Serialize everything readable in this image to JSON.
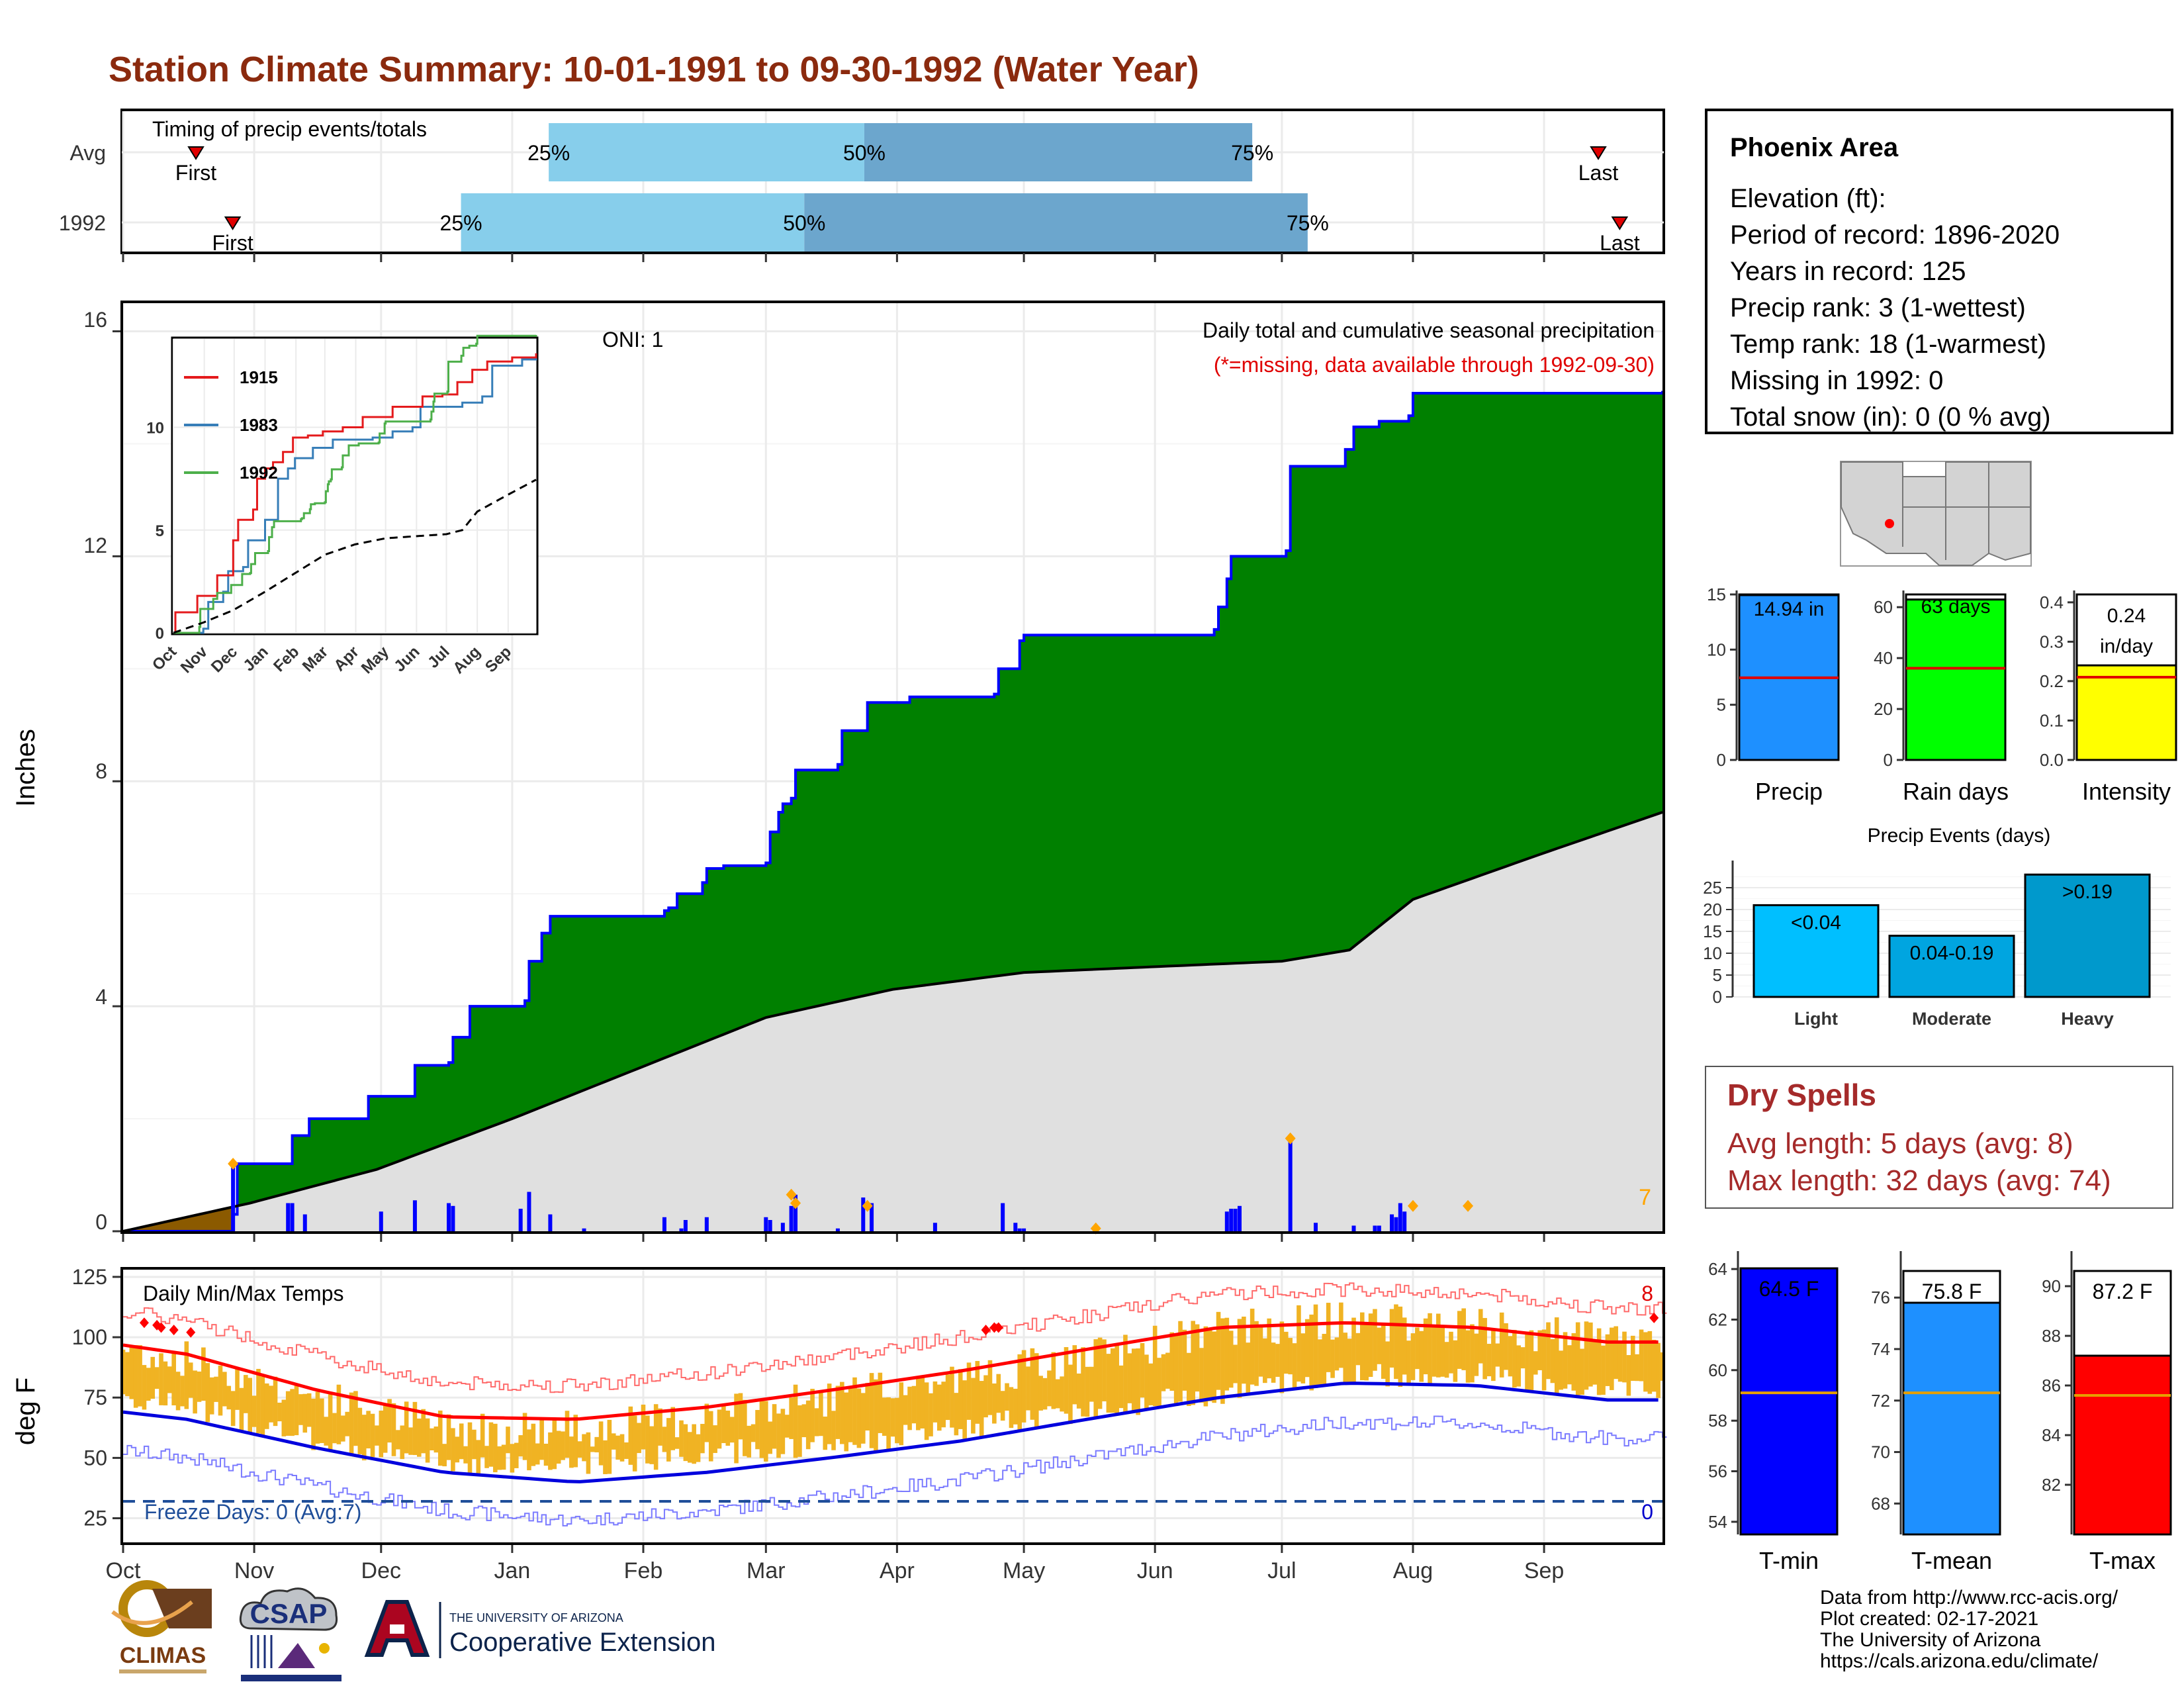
{
  "title": "Station Climate Summary: 10-01-1991 to 09-30-1992 (Water Year)",
  "timing": {
    "heading": "Timing of precip events/totals",
    "rows": [
      {
        "label": "Avg",
        "first": 0.0473,
        "last": 0.9583,
        "q25": 0.2765,
        "q50": 0.4815,
        "q75": 0.7335
      },
      {
        "label": "1992",
        "first": 0.0712,
        "last": 0.9722,
        "q25": 0.2195,
        "q50": 0.4425,
        "q75": 0.7695
      }
    ],
    "first_label": "First",
    "last_label": "Last",
    "q25_label": "25%",
    "q50_label": "50%",
    "q75_label": "75%"
  },
  "precip_panel": {
    "title": "Daily total and cumulative seasonal precipitation",
    "missing_note": "(*=missing, data available through 1992-09-30)",
    "oni_label": "ONI: 1",
    "ylabel": "Inches",
    "yticks": [
      "0",
      "4",
      "8",
      "12",
      "16"
    ],
    "corner_count": "7"
  },
  "temp_panel": {
    "title": "Daily Min/Max Temps",
    "ylabel": "deg F",
    "yticks": [
      "25",
      "50",
      "75",
      "100",
      "125"
    ],
    "freeze_label": "Freeze Days: 0 (Avg:7)",
    "record_high_count": "8",
    "record_low_count": "0"
  },
  "month_labels": [
    "Oct",
    "Nov",
    "Dec",
    "Jan",
    "Feb",
    "Mar",
    "Apr",
    "May",
    "Jun",
    "Jul",
    "Aug",
    "Sep"
  ],
  "inset": {
    "legend": [
      "1915",
      "1983",
      "1992"
    ],
    "yticks": [
      "0",
      "5",
      "10"
    ],
    "xticks": [
      "Oct",
      "Nov",
      "Dec",
      "Jan",
      "Feb",
      "Mar",
      "Apr",
      "May",
      "Jun",
      "Jul",
      "Aug",
      "Sep"
    ]
  },
  "station": {
    "name": "Phoenix Area",
    "lines": [
      "Elevation (ft):",
      "Period of record: 1896-2020",
      "Years in record: 125",
      "Precip rank: 3 (1-wettest)",
      "Temp rank: 18 (1-warmest)",
      "Missing in 1992: 0",
      "Total snow (in): 0 (0 % avg)"
    ]
  },
  "summary_bars": {
    "precip": {
      "label": "Precip",
      "value_label": "14.94 in"
    },
    "rain_days": {
      "label": "Rain days",
      "value_label": "63 days"
    },
    "intensity": {
      "label": "Intensity",
      "value_label": "0.24",
      "unit_label": "in/day"
    },
    "precip_yticks": [
      "0",
      "5",
      "10",
      "15"
    ],
    "rain_yticks": [
      "0",
      "20",
      "40",
      "60"
    ],
    "intensity_yticks": [
      "0.0",
      "0.1",
      "0.2",
      "0.3",
      "0.4"
    ]
  },
  "events": {
    "title": "Precip Events (days)",
    "yticks": [
      "0",
      "5",
      "10",
      "15",
      "20",
      "25"
    ],
    "categories": [
      "Light",
      "Moderate",
      "Heavy"
    ],
    "value_labels": [
      "<0.04",
      "0.04-0.19",
      ">0.19"
    ]
  },
  "dry_spells": {
    "title": "Dry Spells",
    "avg_line": "Avg length: 5 days (avg: 8)",
    "max_line": "Max length: 32 days (avg: 74)"
  },
  "temp_bars": {
    "tmin": {
      "label": "T-min",
      "value_label": "64.5 F",
      "yticks": [
        "54",
        "56",
        "58",
        "60",
        "62",
        "64"
      ]
    },
    "tmean": {
      "label": "T-mean",
      "value_label": "75.8 F",
      "yticks": [
        "68",
        "70",
        "72",
        "74",
        "76"
      ]
    },
    "tmax": {
      "label": "T-max",
      "value_label": "87.2 F",
      "yticks": [
        "82",
        "84",
        "86",
        "88",
        "90"
      ]
    }
  },
  "logos": {
    "climas": "CLIMAS",
    "csap": "CSAP",
    "ua_small": "THE UNIVERSITY OF ARIZONA",
    "ua_big": "Cooperative Extension"
  },
  "credits": [
    "Data from http://www.rcc-acis.org/",
    "Plot created: 02-17-2021",
    "The University of Arizona",
    "https://cals.arizona.edu/climate/"
  ],
  "chart_data": [
    {
      "type": "area",
      "title": "Daily total and cumulative seasonal precipitation",
      "ylabel": "Inches",
      "ylim": [
        0,
        16.5
      ],
      "x_unit": "day of water year (0 = Oct 1)",
      "series": [
        {
          "name": "1992",
          "steps": [
            [
              0,
              0
            ],
            [
              26,
              0.3
            ],
            [
              27,
              1.2
            ],
            [
              39,
              1.2
            ],
            [
              40,
              1.7
            ],
            [
              44,
              2.0
            ],
            [
              57,
              2.0
            ],
            [
              58,
              2.4
            ],
            [
              68,
              2.4
            ],
            [
              69,
              2.95
            ],
            [
              77,
              3.0
            ],
            [
              78,
              3.45
            ],
            [
              82,
              4.0
            ],
            [
              94,
              4.0
            ],
            [
              95,
              4.1
            ],
            [
              96,
              4.8
            ],
            [
              99,
              5.3
            ],
            [
              101,
              5.6
            ],
            [
              128,
              5.7
            ],
            [
              129,
              5.75
            ],
            [
              131,
              6.0
            ],
            [
              137,
              6.2
            ],
            [
              138,
              6.45
            ],
            [
              141,
              6.45
            ],
            [
              142,
              6.5
            ],
            [
              152,
              6.55
            ],
            [
              153,
              7.1
            ],
            [
              155,
              7.45
            ],
            [
              156,
              7.6
            ],
            [
              158,
              7.7
            ],
            [
              159,
              8.2
            ],
            [
              169,
              8.3
            ],
            [
              170,
              8.9
            ],
            [
              175,
              8.9
            ],
            [
              176,
              9.4
            ],
            [
              186,
              9.5
            ],
            [
              206,
              9.55
            ],
            [
              207,
              10.0
            ],
            [
              212,
              10.5
            ],
            [
              213,
              10.6
            ],
            [
              225,
              10.6
            ],
            [
              226,
              10.6
            ],
            [
              258,
              10.7
            ],
            [
              259,
              11.1
            ],
            [
              261,
              11.6
            ],
            [
              262,
              12.0
            ],
            [
              274,
              12.0
            ],
            [
              275,
              12.1
            ],
            [
              276,
              13.6
            ],
            [
              288,
              13.6
            ],
            [
              289,
              13.9
            ],
            [
              291,
              14.3
            ],
            [
              297,
              14.4
            ],
            [
              304,
              14.5
            ],
            [
              305,
              14.9
            ],
            [
              364,
              14.94
            ]
          ]
        },
        {
          "name": "Average",
          "steps": [
            [
              0,
              0
            ],
            [
              30,
              0.5
            ],
            [
              60,
              1.1
            ],
            [
              92,
              2.0
            ],
            [
              122,
              2.9
            ],
            [
              152,
              3.8
            ],
            [
              182,
              4.3
            ],
            [
              213,
              4.6
            ],
            [
              243,
              4.7
            ],
            [
              274,
              4.8
            ],
            [
              290,
              5.0
            ],
            [
              305,
              5.9
            ],
            [
              335,
              6.7
            ],
            [
              364,
              7.45
            ]
          ]
        }
      ],
      "daily_bars": [
        [
          26,
          1.2
        ],
        [
          39,
          0.5
        ],
        [
          40,
          0.5
        ],
        [
          43,
          0.3
        ],
        [
          61,
          0.35
        ],
        [
          69,
          0.55
        ],
        [
          77,
          0.5
        ],
        [
          78,
          0.45
        ],
        [
          94,
          0.4
        ],
        [
          96,
          0.7
        ],
        [
          101,
          0.3
        ],
        [
          109,
          0.05
        ],
        [
          128,
          0.25
        ],
        [
          132,
          0.05
        ],
        [
          133,
          0.2
        ],
        [
          138,
          0.25
        ],
        [
          152,
          0.25
        ],
        [
          153,
          0.2
        ],
        [
          156,
          0.15
        ],
        [
          158,
          0.45
        ],
        [
          159,
          0.65
        ],
        [
          169,
          0.05
        ],
        [
          175,
          0.6
        ],
        [
          177,
          0.5
        ],
        [
          192,
          0.15
        ],
        [
          208,
          0.5
        ],
        [
          211,
          0.15
        ],
        [
          212,
          0.05
        ],
        [
          213,
          0.05
        ],
        [
          261,
          0.35
        ],
        [
          262,
          0.4
        ],
        [
          263,
          0.4
        ],
        [
          264,
          0.45
        ],
        [
          276,
          1.65
        ],
        [
          282,
          0.15
        ],
        [
          291,
          0.1
        ],
        [
          296,
          0.1
        ],
        [
          297,
          0.1
        ],
        [
          300,
          0.3
        ],
        [
          301,
          0.25
        ],
        [
          302,
          0.5
        ],
        [
          303,
          0.35
        ]
      ],
      "annotations": [
        "ONI: 1",
        "(*=missing, data available through 1992-09-30)"
      ]
    },
    {
      "type": "line",
      "title": "Daily Min/Max Temps",
      "ylabel": "deg F",
      "ylim": [
        15,
        128
      ],
      "months": [
        "Oct",
        "Nov",
        "Dec",
        "Jan",
        "Feb",
        "Mar",
        "Apr",
        "May",
        "Jun",
        "Jul",
        "Aug",
        "Sep"
      ],
      "series": [
        {
          "name": "avg max",
          "values": [
            93,
            78,
            67,
            66,
            71,
            78,
            86,
            95,
            104,
            106,
            104,
            98
          ]
        },
        {
          "name": "avg min",
          "values": [
            66,
            54,
            44,
            40,
            44,
            50,
            57,
            66,
            75,
            81,
            80,
            74
          ]
        },
        {
          "name": "daily max",
          "values": [
            91,
            75,
            63,
            62,
            67,
            75,
            83,
            91,
            103,
            107,
            104,
            98
          ]
        },
        {
          "name": "daily min",
          "values": [
            72,
            57,
            48,
            47,
            52,
            55,
            62,
            70,
            77,
            84,
            85,
            79
          ]
        }
      ],
      "freeze_line": 32
    },
    {
      "type": "bar",
      "categories": [
        "Precip",
        "Rain days",
        "Intensity"
      ],
      "values": [
        14.94,
        63,
        0.24
      ],
      "averages": [
        7.45,
        36,
        0.21
      ],
      "ylims": [
        [
          0,
          15
        ],
        [
          0,
          65
        ],
        [
          0,
          0.42
        ]
      ]
    },
    {
      "type": "bar",
      "title": "Precip Events (days)",
      "categories": [
        "Light",
        "Moderate",
        "Heavy"
      ],
      "values": [
        21,
        14,
        28
      ],
      "ylim": [
        0,
        30
      ]
    },
    {
      "type": "bar",
      "categories": [
        "T-min",
        "T-mean",
        "T-max"
      ],
      "values": [
        64.5,
        75.8,
        87.2
      ],
      "averages": [
        59.1,
        72.3,
        85.6
      ],
      "ylims": [
        [
          53.5,
          64.5
        ],
        [
          66.8,
          77.6
        ],
        [
          80.0,
          91.2
        ]
      ]
    }
  ]
}
